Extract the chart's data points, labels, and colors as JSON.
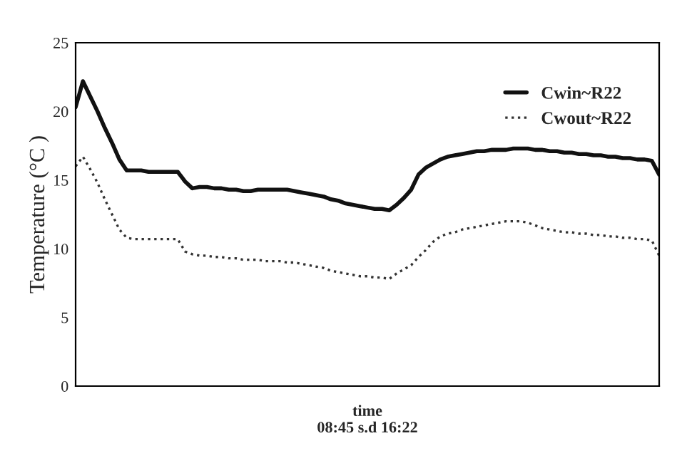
{
  "chart_data": {
    "type": "line",
    "xlabel": "time\n08:45 s.d 16:22",
    "ylabel": "Temperature (°C )",
    "categories": [
      null,
      null,
      null,
      null,
      null,
      null,
      null,
      null,
      null,
      null,
      null,
      null,
      null,
      null,
      null,
      null,
      null,
      null,
      null,
      null,
      null,
      null,
      null,
      null,
      null,
      null,
      null,
      null,
      null,
      null,
      null,
      null,
      null,
      null,
      null,
      null,
      null,
      null,
      null,
      null,
      null,
      null,
      null,
      null,
      null,
      null,
      null,
      null,
      null,
      null,
      null,
      null,
      null,
      null,
      null,
      null,
      null,
      null,
      null,
      null,
      null,
      null,
      null,
      null,
      null,
      null,
      null,
      null,
      null,
      null,
      null,
      null,
      null,
      null,
      null,
      null,
      null,
      null,
      null,
      null,
      null
    ],
    "series": [
      {
        "name": "Cwin~R22",
        "color": "#111111",
        "line_style": "solid",
        "values": [
          20.3,
          22.2,
          21.1,
          20.0,
          18.8,
          17.7,
          16.5,
          15.7,
          15.7,
          15.7,
          15.6,
          15.6,
          15.6,
          15.6,
          15.6,
          14.9,
          14.4,
          14.5,
          14.5,
          14.4,
          14.4,
          14.3,
          14.3,
          14.2,
          14.2,
          14.3,
          14.3,
          14.3,
          14.3,
          14.3,
          14.2,
          14.1,
          14.0,
          13.9,
          13.8,
          13.6,
          13.5,
          13.3,
          13.2,
          13.1,
          13.0,
          12.9,
          12.9,
          12.8,
          13.2,
          13.7,
          14.3,
          15.4,
          15.9,
          16.2,
          16.5,
          16.7,
          16.8,
          16.9,
          17.0,
          17.1,
          17.1,
          17.2,
          17.2,
          17.2,
          17.3,
          17.3,
          17.3,
          17.2,
          17.2,
          17.1,
          17.1,
          17.0,
          17.0,
          16.9,
          16.9,
          16.8,
          16.8,
          16.7,
          16.7,
          16.6,
          16.6,
          16.5,
          16.5,
          16.4,
          15.4
        ]
      },
      {
        "name": "Cwout~R22",
        "color": "#333333",
        "line_style": "dotted",
        "values": [
          16.0,
          16.7,
          15.8,
          14.8,
          13.6,
          12.5,
          11.4,
          10.8,
          10.7,
          10.7,
          10.7,
          10.7,
          10.7,
          10.7,
          10.7,
          9.8,
          9.6,
          9.5,
          9.5,
          9.4,
          9.4,
          9.3,
          9.3,
          9.2,
          9.2,
          9.2,
          9.1,
          9.1,
          9.1,
          9.0,
          9.0,
          8.9,
          8.8,
          8.7,
          8.6,
          8.4,
          8.3,
          8.2,
          8.1,
          8.0,
          8.0,
          7.9,
          7.9,
          7.8,
          8.2,
          8.5,
          8.8,
          9.4,
          9.9,
          10.5,
          10.9,
          11.1,
          11.2,
          11.4,
          11.5,
          11.6,
          11.7,
          11.8,
          11.9,
          12.0,
          12.0,
          12.0,
          11.9,
          11.7,
          11.5,
          11.4,
          11.3,
          11.2,
          11.2,
          11.1,
          11.1,
          11.0,
          11.0,
          10.9,
          10.9,
          10.8,
          10.8,
          10.7,
          10.7,
          10.6,
          9.5
        ]
      }
    ],
    "ylim": [
      0,
      25
    ],
    "yticks": [
      0,
      5,
      10,
      15,
      20,
      25
    ],
    "grid": false,
    "legend": "top right",
    "marker": "none"
  }
}
